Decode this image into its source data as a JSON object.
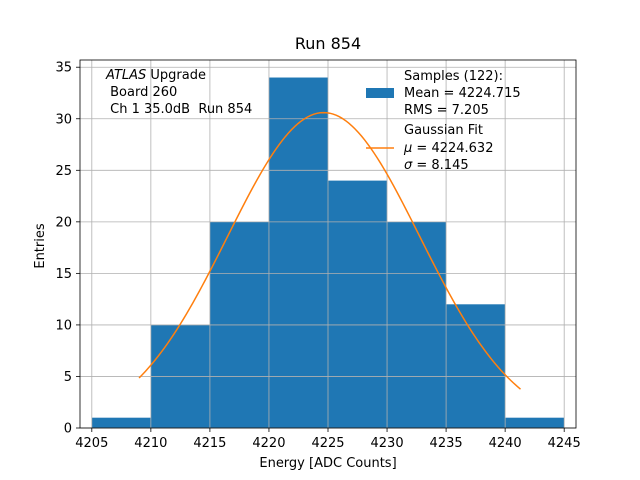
{
  "chart_data": {
    "type": "bar",
    "title": "Run 854",
    "xlabel": "Energy [ADC Counts]",
    "ylabel": "Entries",
    "xlim": [
      4204,
      4246
    ],
    "ylim": [
      0,
      35.7
    ],
    "xticks": [
      4205,
      4210,
      4215,
      4220,
      4225,
      4230,
      4235,
      4240,
      4245
    ],
    "yticks": [
      0,
      5,
      10,
      15,
      20,
      25,
      30,
      35
    ],
    "grid": true,
    "bin_edges": [
      4205,
      4210,
      4215,
      4220,
      4225,
      4230,
      4235,
      4240,
      4245
    ],
    "values": [
      1,
      10,
      20,
      34,
      24,
      20,
      12,
      1
    ],
    "bar_color": "#1f77b4",
    "fit": {
      "name": "Gaussian Fit",
      "mu": 4224.632,
      "sigma": 8.145,
      "amplitude": 30.6,
      "x_range": [
        4209,
        4241.3
      ],
      "color": "#ff7f0e"
    },
    "annotation": {
      "italic": "ATLAS",
      "line1_rest": " Upgrade",
      "line2": " Board 260",
      "line3": " Ch 1 35.0dB  Run 854"
    },
    "legend": {
      "position": "top-right",
      "samples_line1": "Samples (122):",
      "samples_line2": "Mean = 4224.715",
      "samples_line3": "RMS = 7.205",
      "fit_line1": "Gaussian Fit",
      "fit_mu_symbol": "μ",
      "fit_mu_value": " = 4224.632",
      "fit_sigma_symbol": "σ",
      "fit_sigma_value": " = 8.145"
    }
  }
}
